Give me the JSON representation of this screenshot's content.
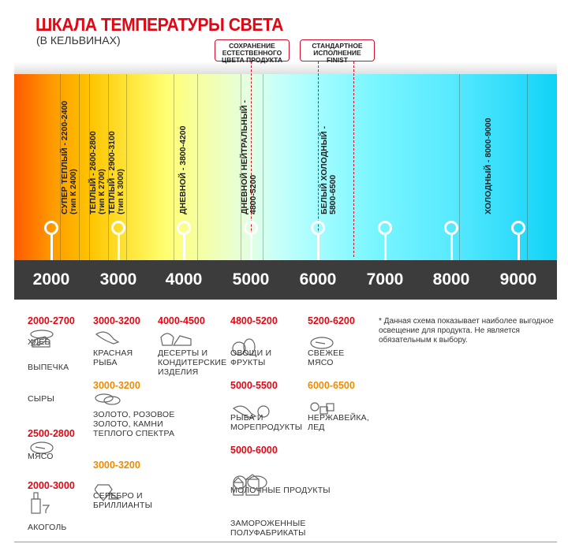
{
  "header": {
    "title": "ШКАЛА ТЕМПЕРАТУРЫ СВЕТА",
    "subtitle": "(В КЕЛЬВИНАХ)"
  },
  "callouts": [
    {
      "text": [
        "СОХРАНЕНИЕ",
        "ЕСТЕСТВЕННОГО",
        "ЦВЕТА ПРОДУКТА"
      ],
      "marker_kelvin": 5000,
      "color": "#d0102a"
    },
    {
      "text": [
        "СТАНДАРТНОЕ",
        "ИСПОЛНЕНИЕ",
        "FINIST"
      ],
      "marker_kelvin": [
        6000,
        6500
      ],
      "color": "#d0102a"
    }
  ],
  "zones": [
    {
      "line1": "СУПЕР ТЕПЛЫЙ - 2200-2400",
      "line2": "(тип К 2400)"
    },
    {
      "line1": "ТЕПЛЫЙ - 2600-2800",
      "line2": "(тип К 2700)"
    },
    {
      "line1": "ТЕПЛЫЙ - 2900-3100",
      "line2": "(тип К 3000)"
    },
    {
      "line1": "ДНЕВНОЙ - 3800-4200",
      "line2": ""
    },
    {
      "line1": "ДНЕВНОЙ НЕЙТРАЛЬНЫЙ -",
      "line2": "4800-5200"
    },
    {
      "line1": "БЕЛЫЙ ХОЛОДНЫЙ -",
      "line2": "5800-6500"
    },
    {
      "line1": "ХОЛОДНЫЙ - 8000-9000",
      "line2": ""
    }
  ],
  "scale_ticks": [
    "2000",
    "3000",
    "4000",
    "5000",
    "6000",
    "7000",
    "8000",
    "9000"
  ],
  "gradient_colors": {
    "warm": "#ff5a00",
    "neutral": "#e4ffe0",
    "cold": "#10d2f5"
  },
  "groups": [
    {
      "range": "2000-2700",
      "color": "#e30613",
      "items": [
        {
          "icon": "bread-icon",
          "label": "ХЛЕБ"
        },
        {
          "icon": "croissant-icon",
          "label": "ВЫПЕЧКА"
        },
        {
          "icon": "cheese-icon",
          "label": "СЫРЫ"
        }
      ]
    },
    {
      "range": "2500-2800",
      "color": "#e30613",
      "items": [
        {
          "icon": "steak-icon",
          "label": "МЯСО"
        }
      ]
    },
    {
      "range": "2000-3000",
      "color": "#e30613",
      "items": [
        {
          "icon": "bottle-glass-icon",
          "label": "АКОГОЛЬ"
        }
      ]
    },
    {
      "range": "3000-3200",
      "color": "#e30613",
      "items": [
        {
          "icon": "fish-icon",
          "label": "КРАСНАЯ РЫБА"
        }
      ]
    },
    {
      "range": "3000-3200",
      "color": "#f08a00",
      "items": [
        {
          "icon": "rings-icon",
          "label": "ЗОЛОТО, РОЗОВОЕ ЗОЛОТО, КАМНИ ТЕПЛОГО СПЕКТРА"
        }
      ]
    },
    {
      "range": "3000-3200",
      "color": "#f08a00",
      "items": [
        {
          "icon": "diamond-icon",
          "label": "СЕРЕБРО И БРИЛЛИАНТЫ"
        }
      ]
    },
    {
      "range": "4000-4500",
      "color": "#e30613",
      "items": [
        {
          "icon": "cake-icon",
          "label": "ДЕСЕРТЫ И КОНДИТЕРСКИЕ ИЗДЕЛИЯ"
        }
      ]
    },
    {
      "range": "4800-5200",
      "color": "#e30613",
      "items": [
        {
          "icon": "vegetables-icon",
          "label": "ОВОЩИ И ФРУКТЫ"
        }
      ]
    },
    {
      "range": "5000-5500",
      "color": "#e30613",
      "items": [
        {
          "icon": "fish-crab-icon",
          "label": "РЫБА И МОРЕПРОДУКТЫ"
        }
      ]
    },
    {
      "range": "5000-6000",
      "color": "#e30613",
      "items": [
        {
          "icon": "milk-icon",
          "label": "МОЛОЧНЫЕ ПРОДУКТЫ"
        },
        {
          "icon": "frozen-food-icon",
          "label": "ЗАМОРОЖЕННЫЕ ПОЛУФАБРИКАТЫ"
        }
      ]
    },
    {
      "range": "5200-6200",
      "color": "#e30613",
      "items": [
        {
          "icon": "steak-icon",
          "label": "СВЕЖЕЕ МЯСО"
        }
      ]
    },
    {
      "range": "6000-6500",
      "color": "#f08a00",
      "items": [
        {
          "icon": "ice-icon",
          "label": "НЕРЖАВЕЙКА, ЛЕД"
        }
      ]
    }
  ],
  "note": "* Данная схема показывает наиболее выгодное освещение для продукта. Не является обязательным к выбору."
}
